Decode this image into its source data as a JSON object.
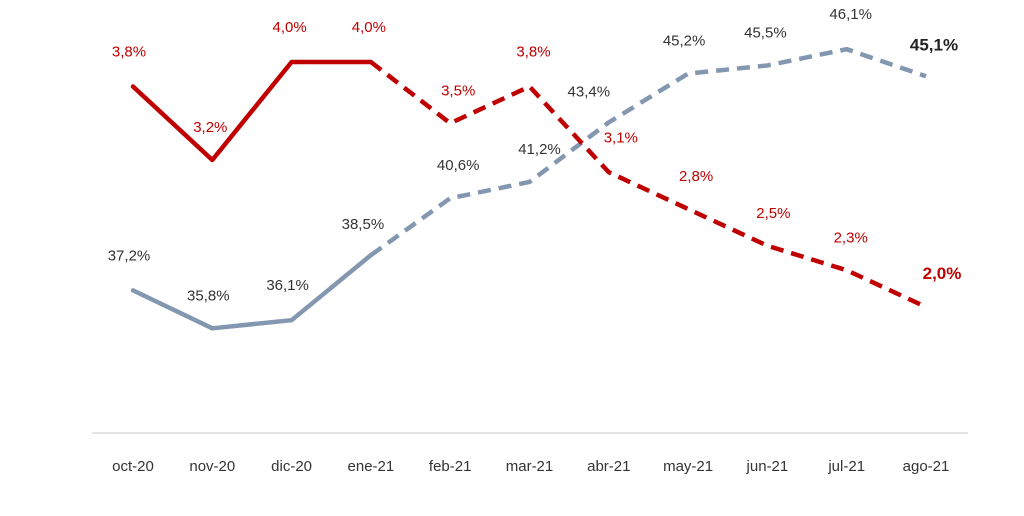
{
  "chart_data": {
    "type": "line",
    "title": "",
    "xlabel": "",
    "ylabel": "",
    "categories": [
      "oct-20",
      "nov-20",
      "dic-20",
      "ene-21",
      "feb-21",
      "mar-21",
      "abr-21",
      "may-21",
      "jun-21",
      "jul-21",
      "ago-21"
    ],
    "ylim": [
      30,
      50
    ],
    "y2lim": [
      1.8,
      4.1
    ],
    "grid": false,
    "legend": "none",
    "series": [
      {
        "color": "#8497b0",
        "axis": "left",
        "values": [
          37.2,
          35.8,
          36.1,
          38.5,
          40.6,
          41.2,
          43.4,
          45.2,
          45.5,
          46.1,
          45.1
        ],
        "labels": [
          "37,2%",
          "35,8%",
          "36,1%",
          "38,5%",
          "40,6%",
          "41,2%",
          "43,4%",
          "45,2%",
          "45,5%",
          "46,1%",
          "45,1%"
        ],
        "solid_until_index": 3,
        "label_color": "#333333",
        "emphasis_last": true
      },
      {
        "color": "#c00000",
        "axis": "right",
        "values": [
          3.8,
          3.2,
          4.0,
          4.0,
          3.5,
          3.8,
          3.1,
          2.8,
          2.5,
          2.3,
          2.0
        ],
        "labels": [
          "3,8%",
          "3,2%",
          "4,0%",
          "4,0%",
          "3,5%",
          "3,8%",
          "3,1%",
          "2,8%",
          "2,5%",
          "2,3%",
          "2,0%"
        ],
        "solid_until_index": 3,
        "label_color": "#c00000",
        "emphasis_last": true
      }
    ]
  }
}
